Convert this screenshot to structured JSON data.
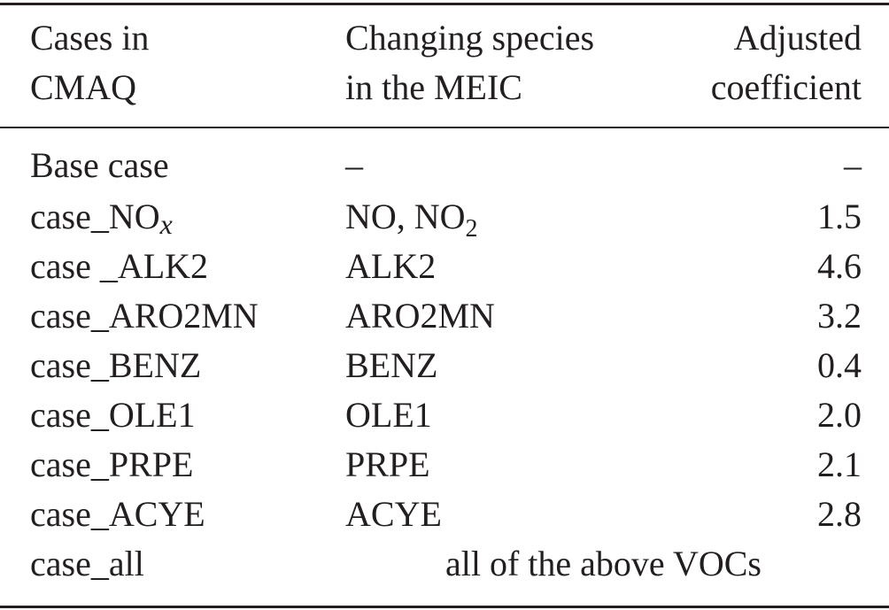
{
  "header": {
    "col1": [
      "Cases in",
      "CMAQ"
    ],
    "col2": [
      "Changing species",
      "in the MEIC"
    ],
    "col3": [
      "Adjusted",
      "coefficient"
    ]
  },
  "rows": [
    {
      "case": "Base case",
      "species": "–",
      "coef": "–"
    },
    {
      "case_base": "case_NO",
      "case_sub": "x",
      "species_base": "NO, NO",
      "species_sub": "2",
      "coef": "1.5"
    },
    {
      "case": "case _ALK2",
      "species": "ALK2",
      "coef": "4.6"
    },
    {
      "case": "case_ARO2MN",
      "species": "ARO2MN",
      "coef": "3.2"
    },
    {
      "case": "case_BENZ",
      "species": "BENZ",
      "coef": "0.4"
    },
    {
      "case": "case_OLE1",
      "species": "OLE1",
      "coef": "2.0"
    },
    {
      "case": "case_PRPE",
      "species": "PRPE",
      "coef": "2.1"
    },
    {
      "case": "case_ACYE",
      "species": "ACYE",
      "coef": "2.8"
    },
    {
      "case": "case_all",
      "span": "all of the above VOCs"
    }
  ]
}
